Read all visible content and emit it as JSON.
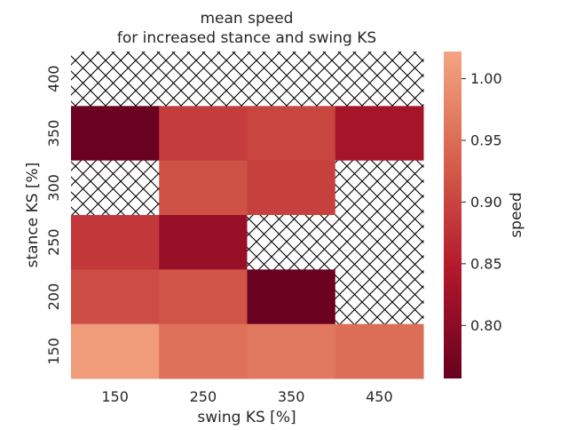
{
  "chart_data": {
    "type": "heatmap",
    "title": [
      "mean speed",
      "for increased stance and swing KS"
    ],
    "xlabel": "swing KS [%]",
    "ylabel": "stance KS [%]",
    "x_categories": [
      "150",
      "250",
      "350",
      "450"
    ],
    "y_categories": [
      "400",
      "350",
      "300",
      "250",
      "200",
      "150"
    ],
    "values": [
      [
        null,
        null,
        null,
        null
      ],
      [
        0.762,
        0.89,
        0.9,
        0.83
      ],
      [
        null,
        0.915,
        0.895,
        null
      ],
      [
        0.885,
        0.815,
        null,
        null
      ],
      [
        0.91,
        0.92,
        0.76,
        null
      ],
      [
        1.01,
        0.955,
        0.965,
        0.95
      ]
    ],
    "missing_pattern": "crosshatch",
    "colorbar": {
      "label": "speed",
      "range": [
        0.757,
        1.022
      ],
      "ticks": [
        "0.80",
        "0.85",
        "0.90",
        "0.95",
        "1.00"
      ],
      "colormap_stops": [
        "#67001f",
        "#b2182b",
        "#d6604d",
        "#f4a582"
      ]
    }
  }
}
